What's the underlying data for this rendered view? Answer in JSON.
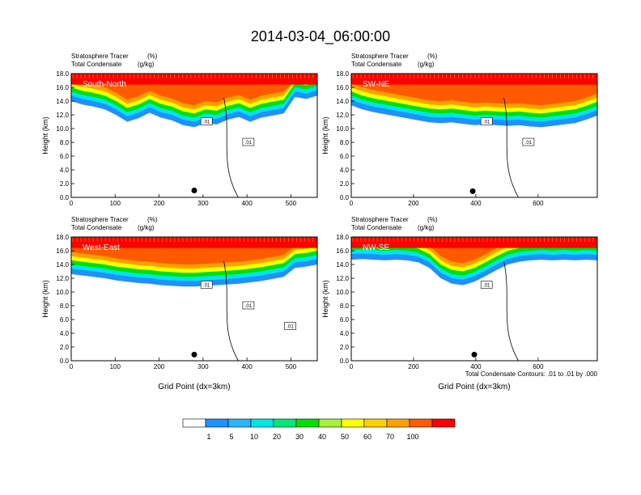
{
  "page_title": "2014-03-04_06:00:00",
  "footnote": "Total Condensate Contours: .01 to .01 by .000",
  "colorbar": {
    "colors": [
      "#ffffff",
      "#1e90ff",
      "#29b6f6",
      "#00e5e5",
      "#00e87a",
      "#00e000",
      "#a8f03a",
      "#ffff00",
      "#ffd000",
      "#ffa000",
      "#ff5a00",
      "#ff0000"
    ],
    "labels": [
      "1",
      "5",
      "10",
      "20",
      "30",
      "40",
      "50",
      "60",
      "70",
      "100"
    ]
  },
  "chart_data": [
    {
      "type": "heatmap",
      "panel": "South-North",
      "subtitle_left_1": "Stratosphere Tracer",
      "subtitle_right_1": "(%)",
      "subtitle_left_2": "Total Condensate",
      "subtitle_right_2": "(g/kg)",
      "ylabel": "Height (km)",
      "xlabel": "",
      "xlim": [
        0,
        560
      ],
      "ylim": [
        0,
        18
      ],
      "xticks": [
        "0",
        "100",
        "200",
        "300",
        "400",
        "500"
      ],
      "yticks": [
        "0.0",
        "2.0",
        "4.0",
        "6.0",
        "8.0",
        "10.0",
        "12.0",
        "14.0",
        "16.0",
        "18.0"
      ],
      "contour_labels": [
        ".01",
        ".01"
      ],
      "tracer_base_km": [
        14.0,
        13.5,
        13.2,
        12.8,
        12.0,
        11.0,
        11.5,
        12.3,
        11.6,
        11.2,
        10.5,
        10.2,
        10.8,
        10.6,
        11.3,
        11.7,
        11.0,
        11.6,
        11.9,
        12.2,
        14.6,
        14.3,
        14.8
      ],
      "marker": [
        280,
        1.0
      ]
    },
    {
      "type": "heatmap",
      "panel": "SW-NE",
      "subtitle_left_1": "Stratosphere Tracer",
      "subtitle_right_1": "(%)",
      "subtitle_left_2": "Total Condensate",
      "subtitle_right_2": "(g/kg)",
      "ylabel": "Height (km)",
      "xlabel": "",
      "xlim": [
        0,
        790
      ],
      "ylim": [
        0,
        18
      ],
      "xticks": [
        "0",
        "200",
        "400",
        "600"
      ],
      "yticks": [
        "0.0",
        "2.0",
        "4.0",
        "6.0",
        "8.0",
        "10.0",
        "12.0",
        "14.0",
        "16.0",
        "18.0"
      ],
      "contour_labels": [
        ".01",
        ".01"
      ],
      "tracer_base_km": [
        13.4,
        12.8,
        12.4,
        12.1,
        11.8,
        11.5,
        11.2,
        10.9,
        10.8,
        10.9,
        10.7,
        10.5,
        10.6,
        10.5,
        10.4,
        10.5,
        10.3,
        10.2,
        10.4,
        10.6,
        10.8,
        11.3,
        11.9
      ],
      "marker": [
        390,
        0.9
      ]
    },
    {
      "type": "heatmap",
      "panel": "West-East",
      "subtitle_left_1": "Stratosphere Tracer",
      "subtitle_right_1": "(%)",
      "subtitle_left_2": "Total Condensate",
      "subtitle_right_2": "(g/kg)",
      "ylabel": "Height (km)",
      "xlabel": "Grid Point (dx=3km)",
      "xlim": [
        0,
        560
      ],
      "ylim": [
        0,
        18
      ],
      "xticks": [
        "0",
        "100",
        "200",
        "300",
        "400",
        "500"
      ],
      "yticks": [
        "0.0",
        "2.0",
        "4.0",
        "6.0",
        "8.0",
        "10.0",
        "12.0",
        "14.0",
        "16.0",
        "18.0"
      ],
      "contour_labels": [
        ".01",
        ".01",
        ".01"
      ],
      "tracer_base_km": [
        12.6,
        12.4,
        12.2,
        12.0,
        11.7,
        11.5,
        11.3,
        11.2,
        11.0,
        10.9,
        10.8,
        10.8,
        10.9,
        11.0,
        11.1,
        11.2,
        11.4,
        11.6,
        11.9,
        12.2,
        13.5,
        13.7,
        14.0
      ],
      "marker": [
        280,
        0.9
      ]
    },
    {
      "type": "heatmap",
      "panel": "NW-SE",
      "subtitle_left_1": "Stratosphere Tracer",
      "subtitle_right_1": "(%)",
      "subtitle_left_2": "Total Condensate",
      "subtitle_right_2": "(g/kg)",
      "ylabel": "Height (km)",
      "xlabel": "Grid Point (dx=3km)",
      "xlim": [
        0,
        790
      ],
      "ylim": [
        0,
        18
      ],
      "xticks": [
        "0",
        "200",
        "400",
        "600"
      ],
      "yticks": [
        "0.0",
        "2.0",
        "4.0",
        "6.0",
        "8.0",
        "10.0",
        "12.0",
        "14.0",
        "16.0",
        "18.0"
      ],
      "contour_labels": [
        ".01"
      ],
      "tracer_base_km": [
        14.7,
        14.8,
        14.7,
        14.6,
        14.7,
        14.6,
        14.3,
        13.5,
        12.0,
        11.2,
        11.0,
        11.5,
        12.3,
        13.2,
        14.0,
        14.4,
        14.6,
        14.7,
        14.6,
        14.7,
        14.6,
        14.7,
        14.6
      ],
      "marker": [
        395,
        0.9
      ]
    }
  ]
}
